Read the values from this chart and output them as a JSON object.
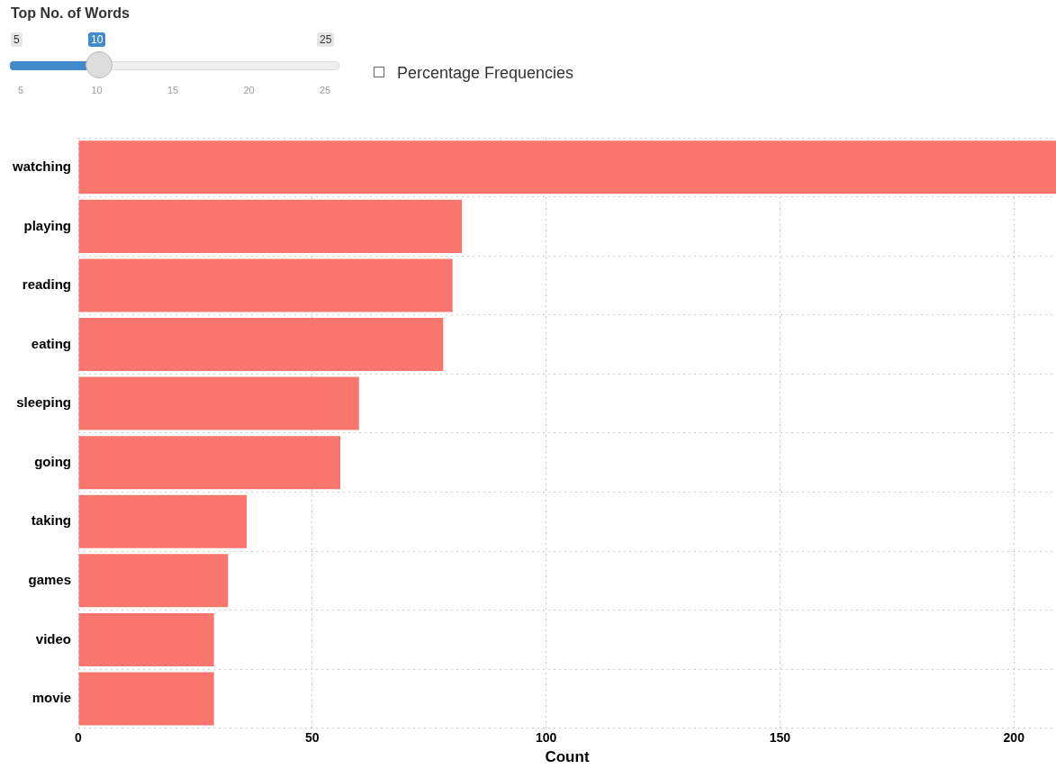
{
  "chart_data": {
    "type": "bar",
    "orientation": "horizontal",
    "xlabel": "Count",
    "categories": [
      "watching",
      "playing",
      "reading",
      "eating",
      "sleeping",
      "going",
      "taking",
      "games",
      "video",
      "movie"
    ],
    "values": [
      209,
      82,
      80,
      78,
      60,
      56,
      36,
      32,
      29,
      29
    ],
    "color": "#f8766d",
    "xlim": [
      0,
      209
    ],
    "xticks": [
      0,
      50,
      100,
      150,
      200
    ],
    "grid": true,
    "legend": false,
    "annotations": [
      "Top No. of Words",
      "5",
      "10",
      "25",
      "5",
      "10",
      "15",
      "20",
      "25",
      "Percentage Frequencies"
    ]
  }
}
